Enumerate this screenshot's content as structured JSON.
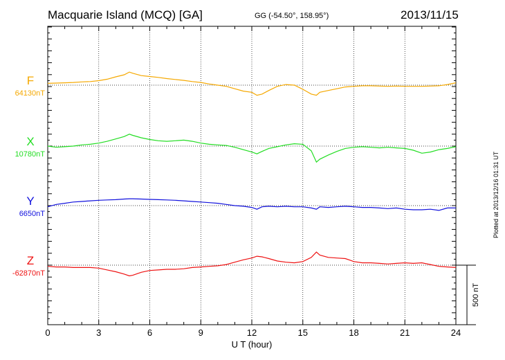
{
  "header": {
    "title": "Macquarie Island (MCQ)  [GA]",
    "coords": "GG (-54.50°, 158.95°)",
    "date": "2013/11/15",
    "plotted": "Plotted at 2013/12/16 01:31  UT"
  },
  "chart_data": {
    "type": "line",
    "title": "Macquarie Island (MCQ)  [GA]",
    "xlabel": "U T (hour)",
    "ylabel": "",
    "xlim": [
      0,
      24
    ],
    "x_ticks": [
      0,
      3,
      6,
      9,
      12,
      15,
      18,
      21,
      24
    ],
    "x_tick_labels": [
      "0",
      "3",
      "6",
      "9",
      "12",
      "15",
      "18",
      "21",
      "24"
    ],
    "grid": true,
    "scale_bar": {
      "label": "500 nT",
      "value_nT": 500
    },
    "series": [
      {
        "name": "F",
        "baseline_label": "64130nT",
        "baseline_nT": 64130,
        "color": "#f5a800",
        "x": [
          0,
          0.5,
          1,
          1.5,
          2,
          2.5,
          3,
          3.5,
          4,
          4.5,
          4.8,
          5,
          5.5,
          6,
          6.5,
          7,
          7.5,
          8,
          8.5,
          9,
          9.5,
          10,
          10.5,
          11,
          11.5,
          12,
          12.3,
          12.6,
          13,
          13.5,
          14,
          14.5,
          15,
          15.5,
          15.8,
          16,
          16.5,
          17,
          17.5,
          18,
          18.5,
          19,
          19.5,
          20,
          20.5,
          21,
          21.5,
          22,
          22.5,
          23,
          23.5,
          24
        ],
        "values": [
          30,
          35,
          40,
          45,
          55,
          60,
          75,
          100,
          140,
          175,
          220,
          200,
          160,
          145,
          130,
          110,
          95,
          80,
          60,
          45,
          20,
          0,
          -20,
          -60,
          -100,
          -120,
          -170,
          -150,
          -90,
          -20,
          10,
          0,
          -70,
          -150,
          -170,
          -120,
          -90,
          -60,
          -30,
          -20,
          -10,
          -10,
          -15,
          -20,
          -15,
          -20,
          -20,
          -20,
          -15,
          -10,
          10,
          40
        ]
      },
      {
        "name": "X",
        "baseline_label": "10780nT",
        "baseline_nT": 10780,
        "color": "#22dd22",
        "x": [
          0,
          0.5,
          1,
          1.5,
          2,
          2.5,
          3,
          3.5,
          4,
          4.5,
          4.8,
          5,
          5.5,
          6,
          6.5,
          7,
          7.5,
          8,
          8.5,
          9,
          9.5,
          10,
          10.5,
          11,
          11.5,
          12,
          12.3,
          12.6,
          13,
          13.5,
          14,
          14.5,
          15,
          15.5,
          15.8,
          16,
          16.5,
          17,
          17.5,
          18,
          18.5,
          19,
          19.5,
          20,
          20.5,
          21,
          21.5,
          22,
          22.5,
          23,
          23.5,
          24
        ],
        "values": [
          0,
          -20,
          -10,
          0,
          20,
          30,
          50,
          80,
          120,
          160,
          200,
          180,
          140,
          110,
          90,
          80,
          90,
          100,
          80,
          50,
          30,
          20,
          10,
          -20,
          -60,
          -100,
          -130,
          -90,
          -40,
          -10,
          20,
          40,
          30,
          -80,
          -270,
          -220,
          -150,
          -90,
          -40,
          -20,
          -10,
          -20,
          -30,
          -20,
          -30,
          -40,
          -70,
          -120,
          -100,
          -60,
          -40,
          -10
        ]
      },
      {
        "name": "Y",
        "baseline_label": "6650nT",
        "baseline_nT": 6650,
        "color": "#1010dd",
        "x": [
          0,
          0.5,
          1,
          1.5,
          2,
          2.5,
          3,
          3.5,
          4,
          4.5,
          4.8,
          5,
          5.5,
          6,
          6.5,
          7,
          7.5,
          8,
          8.5,
          9,
          9.5,
          10,
          10.5,
          11,
          11.5,
          12,
          12.3,
          12.6,
          13,
          13.5,
          14,
          14.5,
          15,
          15.5,
          15.8,
          16,
          16.5,
          17,
          17.5,
          18,
          18.5,
          19,
          19.5,
          20,
          20.5,
          21,
          21.5,
          22,
          22.5,
          23,
          23.5,
          24
        ],
        "values": [
          -20,
          20,
          40,
          60,
          70,
          80,
          90,
          95,
          100,
          110,
          115,
          115,
          110,
          105,
          100,
          95,
          90,
          80,
          70,
          60,
          50,
          40,
          20,
          0,
          -10,
          -30,
          -60,
          -20,
          -10,
          -20,
          -10,
          -20,
          -20,
          -40,
          -60,
          -20,
          -30,
          -20,
          -10,
          -20,
          -30,
          -30,
          -40,
          -50,
          -40,
          -60,
          -70,
          -70,
          -60,
          -80,
          -40,
          -40
        ]
      },
      {
        "name": "Z",
        "baseline_label": "-62870nT",
        "baseline_nT": -62870,
        "color": "#ee1111",
        "x": [
          0,
          0.5,
          1,
          1.5,
          2,
          2.5,
          3,
          3.5,
          4,
          4.5,
          4.8,
          5,
          5.5,
          6,
          6.5,
          7,
          7.5,
          8,
          8.5,
          9,
          9.5,
          10,
          10.5,
          11,
          11.5,
          12,
          12.3,
          12.6,
          13,
          13.5,
          14,
          14.5,
          15,
          15.5,
          15.8,
          16,
          16.5,
          17,
          17.5,
          18,
          18.5,
          19,
          19.5,
          20,
          20.5,
          21,
          21.5,
          22,
          22.5,
          23,
          23.5,
          24
        ],
        "values": [
          -20,
          -30,
          -30,
          -40,
          -40,
          -40,
          -50,
          -80,
          -110,
          -150,
          -180,
          -170,
          -120,
          -90,
          -80,
          -70,
          -70,
          -60,
          -40,
          -30,
          -20,
          -10,
          10,
          50,
          90,
          120,
          150,
          140,
          110,
          70,
          50,
          40,
          60,
          130,
          220,
          170,
          130,
          120,
          110,
          60,
          40,
          40,
          30,
          20,
          30,
          40,
          30,
          40,
          10,
          -20,
          -30,
          -40
        ]
      }
    ]
  }
}
